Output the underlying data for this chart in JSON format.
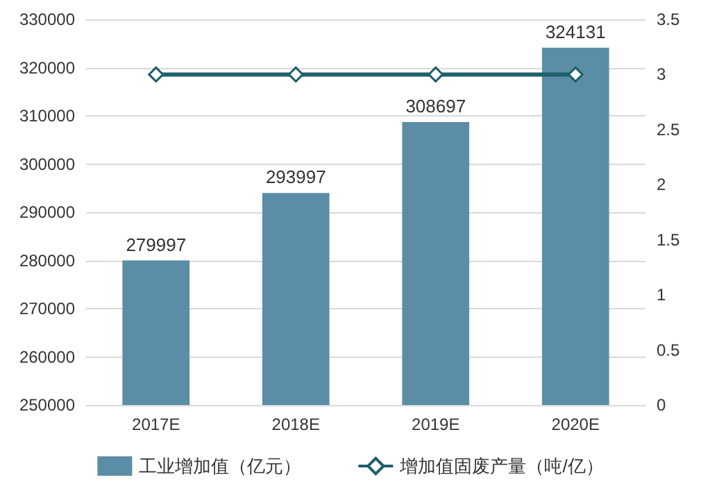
{
  "chart_data": {
    "type": "bar",
    "categories": [
      "2017E",
      "2018E",
      "2019E",
      "2020E"
    ],
    "series": [
      {
        "name": "工业增加值（亿元）",
        "color": "#5b8ea6",
        "values": [
          279997,
          293997,
          308697,
          324131
        ],
        "value_labels": [
          "279997",
          "293997",
          "308697",
          "324131"
        ]
      },
      {
        "name": "增加值固废产量（吨/亿）",
        "type": "line",
        "axis": "y2",
        "color": "#1d5f6a",
        "values": [
          3,
          3,
          3,
          3
        ],
        "marker": "diamond"
      }
    ],
    "ylim": [
      250000,
      330000
    ],
    "yticks": [
      250000,
      260000,
      270000,
      280000,
      290000,
      300000,
      310000,
      320000,
      330000
    ],
    "y2lim": [
      0,
      3.5
    ],
    "y2ticks": [
      0,
      0.5,
      1,
      1.5,
      2,
      2.5,
      3,
      3.5
    ],
    "grid": "y",
    "legend": "bottom"
  }
}
